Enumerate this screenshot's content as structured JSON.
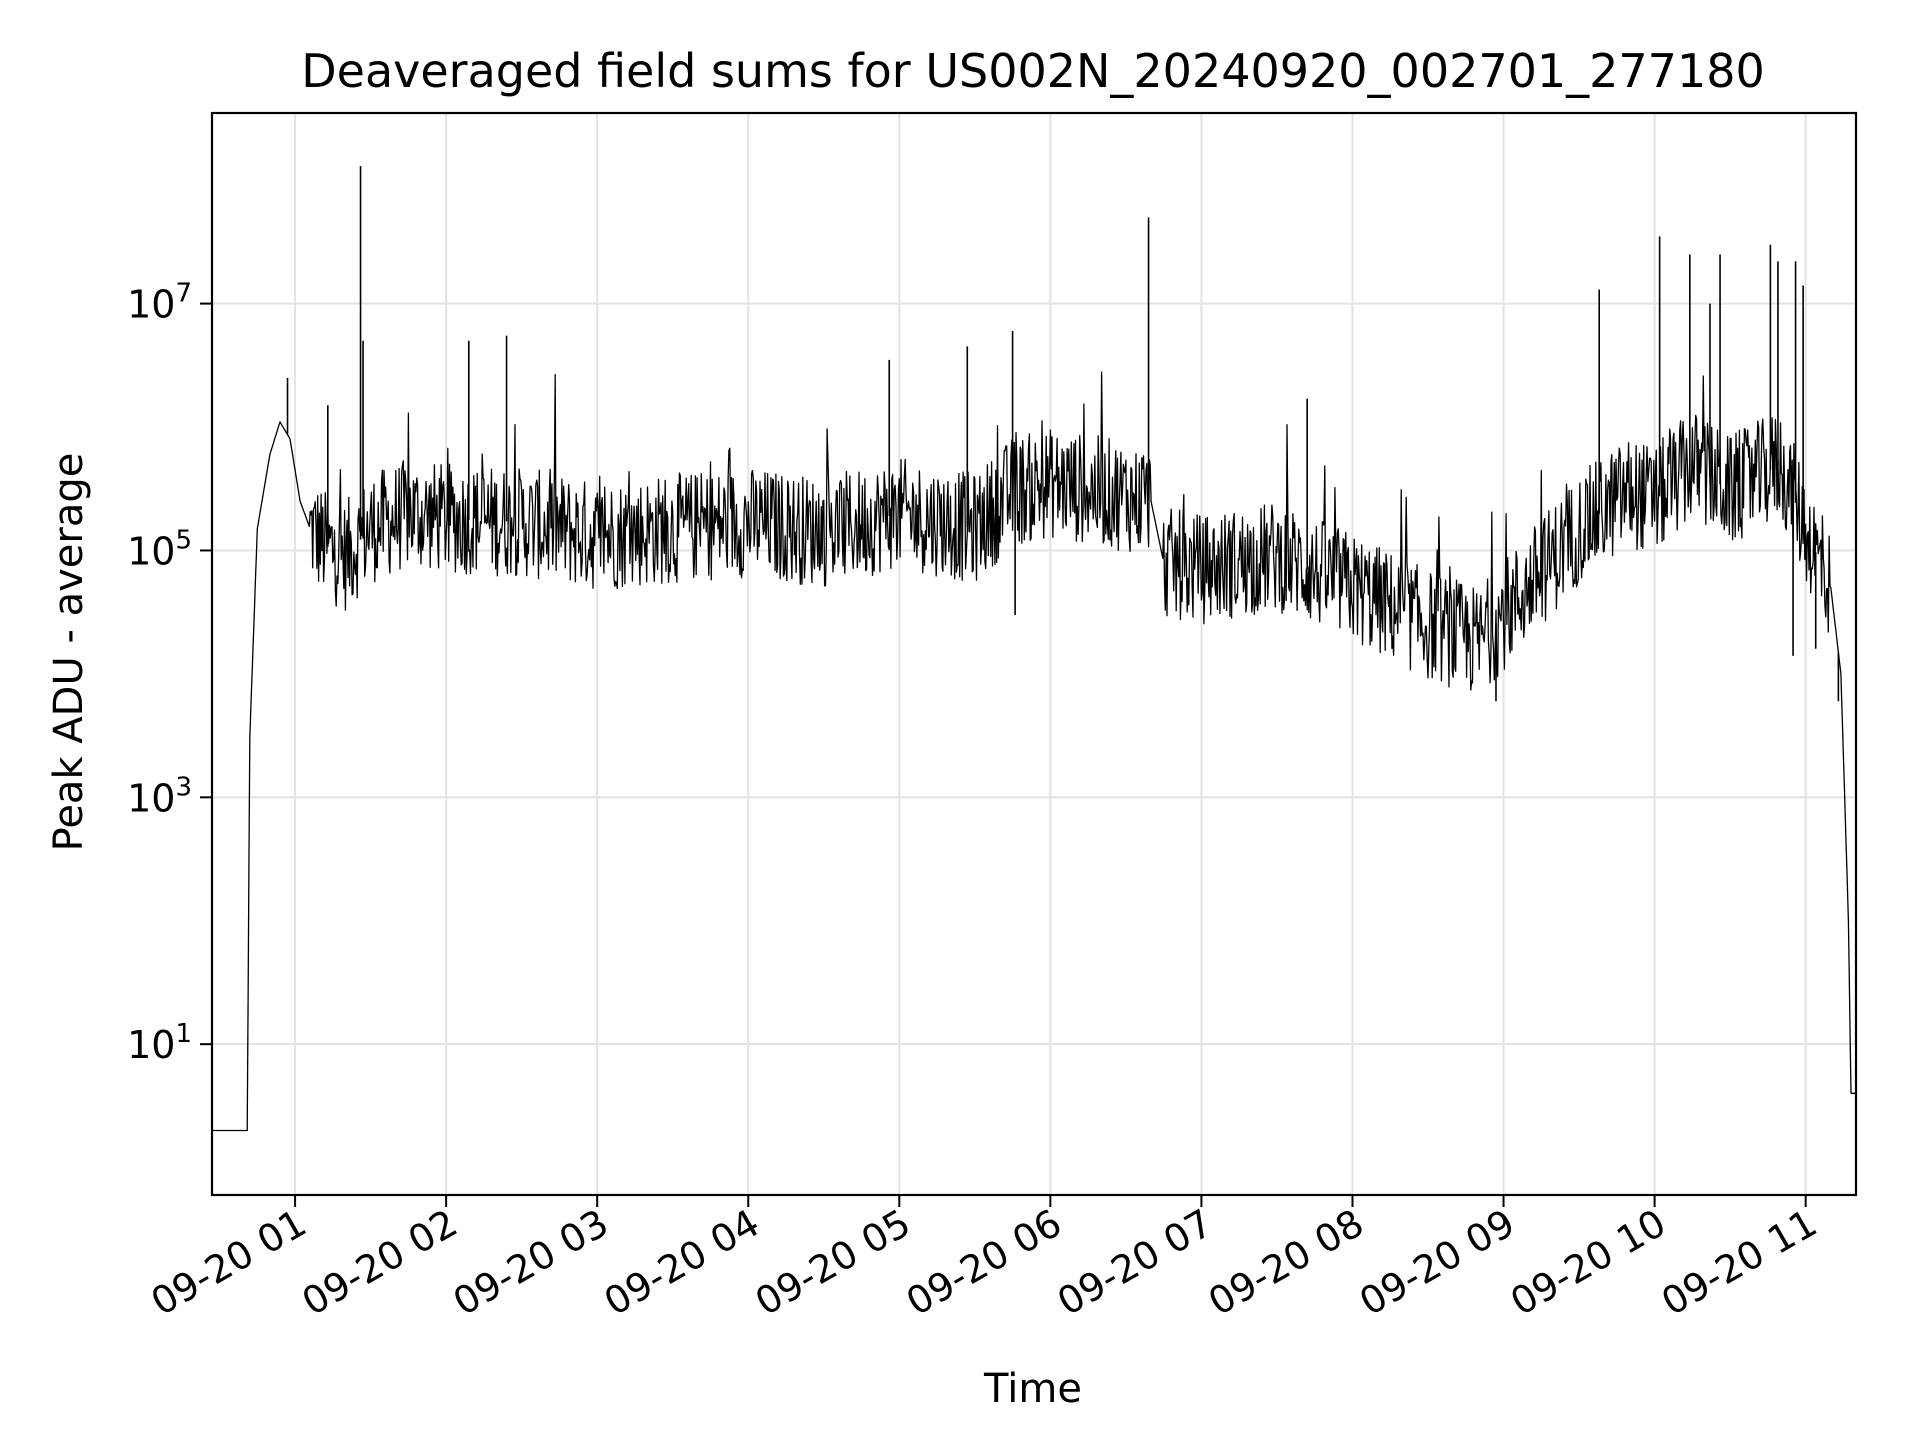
{
  "chart_data": {
    "type": "line",
    "title": "Deaveraged field sums for US002N_20240920_002701_277180",
    "xlabel": "Time",
    "ylabel": "Peak ADU - average",
    "yscale": "log",
    "ylim": [
      0.6,
      350000000.0
    ],
    "xlim": [
      "2024-09-20 00:27",
      "2024-09-20 11:20"
    ],
    "grid": true,
    "line_color": "#000000",
    "x_ticks": [
      "09-20 01",
      "09-20 02",
      "09-20 03",
      "09-20 04",
      "09-20 05",
      "09-20 06",
      "09-20 07",
      "09-20 08",
      "09-20 09",
      "09-20 10",
      "09-20 11"
    ],
    "y_ticks": [
      {
        "base": "10",
        "exp": "1",
        "value": 10
      },
      {
        "base": "10",
        "exp": "3",
        "value": 1000
      },
      {
        "base": "10",
        "exp": "5",
        "value": 100000
      },
      {
        "base": "10",
        "exp": "7",
        "value": 10000000
      }
    ],
    "x_tick_hours": [
      1,
      2,
      3,
      4,
      5,
      6,
      7,
      8,
      9,
      10,
      11
    ],
    "series": [
      {
        "name": "",
        "points": [
          [
            "2024-09-20 00:27",
            2
          ],
          [
            "2024-09-20 00:41",
            2
          ],
          [
            "2024-09-20 00:42",
            3000
          ],
          [
            "2024-09-20 00:45",
            150000
          ],
          [
            "2024-09-20 00:50",
            600000
          ],
          [
            "2024-09-20 00:54",
            1100000
          ],
          [
            "2024-09-20 00:58",
            800000
          ],
          [
            "2024-09-20 01:02",
            250000
          ],
          [
            "2024-09-20 01:06",
            150000
          ],
          [
            "2024-09-20 01:12",
            110000
          ],
          [
            "2024-09-20 01:20",
            90000
          ],
          [
            "2024-09-20 01:30",
            150000
          ],
          [
            "2024-09-20 01:45",
            200000
          ],
          [
            "2024-09-20 02:00",
            180000
          ],
          [
            "2024-09-20 02:30",
            170000
          ],
          [
            "2024-09-20 03:00",
            130000
          ],
          [
            "2024-09-20 03:30",
            150000
          ],
          [
            "2024-09-20 04:00",
            170000
          ],
          [
            "2024-09-20 04:30",
            140000
          ],
          [
            "2024-09-20 05:00",
            200000
          ],
          [
            "2024-09-20 05:30",
            150000
          ],
          [
            "2024-09-20 05:45",
            300000
          ],
          [
            "2024-09-20 06:00",
            350000
          ],
          [
            "2024-09-20 06:20",
            300000
          ],
          [
            "2024-09-20 06:40",
            250000
          ],
          [
            "2024-09-20 06:45",
            80000
          ],
          [
            "2024-09-20 07:00",
            70000
          ],
          [
            "2024-09-20 07:30",
            90000
          ],
          [
            "2024-09-20 08:00",
            50000
          ],
          [
            "2024-09-20 08:30",
            25000
          ],
          [
            "2024-09-20 08:50",
            18000
          ],
          [
            "2024-09-20 09:00",
            30000
          ],
          [
            "2024-09-20 09:30",
            150000
          ],
          [
            "2024-09-20 09:50",
            300000
          ],
          [
            "2024-09-20 10:00",
            250000
          ],
          [
            "2024-09-20 10:15",
            500000
          ],
          [
            "2024-09-20 10:30",
            300000
          ],
          [
            "2024-09-20 10:50",
            500000
          ],
          [
            "2024-09-20 11:00",
            150000
          ],
          [
            "2024-09-20 11:10",
            50000
          ],
          [
            "2024-09-20 11:14",
            10000
          ],
          [
            "2024-09-20 11:17",
            100
          ],
          [
            "2024-09-20 11:18",
            4
          ],
          [
            "2024-09-20 11:20",
            4
          ]
        ],
        "spikes": [
          [
            "2024-09-20 00:57",
            2500000
          ],
          [
            "2024-09-20 01:13",
            1500000
          ],
          [
            "2024-09-20 01:26",
            130000000
          ],
          [
            "2024-09-20 01:27",
            5000000
          ],
          [
            "2024-09-20 02:09",
            5000000
          ],
          [
            "2024-09-20 02:24",
            5500000
          ],
          [
            "2024-09-20 04:56",
            3500000
          ],
          [
            "2024-09-20 05:27",
            4500000
          ],
          [
            "2024-09-20 05:45",
            6000000
          ],
          [
            "2024-09-20 06:39",
            50000000
          ],
          [
            "2024-09-20 07:42",
            1700000
          ],
          [
            "2024-09-20 09:38",
            13000000
          ],
          [
            "2024-09-20 10:02",
            35000000
          ],
          [
            "2024-09-20 10:14",
            25000000
          ],
          [
            "2024-09-20 10:26",
            25000000
          ],
          [
            "2024-09-20 10:46",
            30000000
          ],
          [
            "2024-09-20 10:49",
            22000000
          ],
          [
            "2024-09-20 10:56",
            22000000
          ],
          [
            "2024-09-20 10:59",
            14000000
          ],
          [
            "2024-09-20 10:22",
            10000000
          ]
        ],
        "dips": [
          [
            "2024-09-20 05:46",
            30000
          ],
          [
            "2024-09-20 08:57",
            6000
          ],
          [
            "2024-09-20 10:55",
            14000
          ],
          [
            "2024-09-20 11:13",
            6000
          ],
          [
            "2024-09-20 11:04",
            16000
          ]
        ]
      }
    ]
  }
}
